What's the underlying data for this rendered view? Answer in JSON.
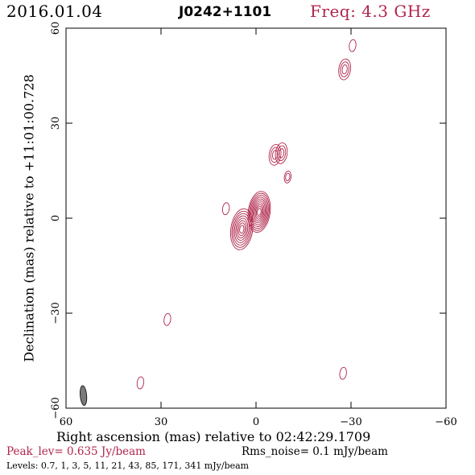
{
  "header": {
    "date": "2016.01.04",
    "source": "J0242+1101",
    "freq": "Freq: 4.3 GHz"
  },
  "footer": {
    "xlabel": "Right ascension (mas) relative to 02:42:29.1709",
    "peak": "Peak_lev=  0.635 Jy/beam",
    "rms": "Rms_noise=  0.1 mJy/beam",
    "levels": "Levels: 0.7,    1,    3,    5,   11,   21,   43,   85, 171, 341 mJy/beam"
  },
  "colors": {
    "contour": "#b0264b",
    "beam_fill": "#7a7a7a",
    "axis": "#000000"
  },
  "chart_data": {
    "type": "contour",
    "title": "",
    "xlabel": "Right ascension (mas) relative to 02:42:29.1709",
    "ylabel": "Declination (mas) relative to +11:01:00.728",
    "xlim": [
      60,
      -60
    ],
    "ylim": [
      -60,
      60
    ],
    "xticks": [
      60,
      30,
      0,
      -30,
      -60
    ],
    "yticks": [
      -60,
      -30,
      0,
      30,
      60
    ],
    "xtick_labels": [
      "60",
      "30",
      "0",
      "−30",
      "−60"
    ],
    "ytick_labels": [
      "−60",
      "−30",
      "0",
      "30",
      "60"
    ],
    "levels_mJy": [
      0.7,
      1,
      3,
      5,
      11,
      21,
      43,
      85,
      171,
      341
    ],
    "peak_Jy_per_beam": 0.635,
    "rms_mJy_per_beam": 0.1,
    "components": [
      {
        "x": -1.0,
        "y": 2.0,
        "n_contours": 10
      },
      {
        "x": 4.5,
        "y": -3.5,
        "n_contours": 8
      },
      {
        "x": -6.0,
        "y": 20.0,
        "n_contours": 3
      },
      {
        "x": -8.0,
        "y": 20.5,
        "n_contours": 3
      },
      {
        "x": -10.0,
        "y": 13.0,
        "n_contours": 2
      },
      {
        "x": -28.0,
        "y": 47.0,
        "n_contours": 3
      },
      {
        "x": -30.5,
        "y": 54.5,
        "n_contours": 1
      },
      {
        "x": 9.5,
        "y": 3.0,
        "n_contours": 1
      },
      {
        "x": 28.0,
        "y": -32.0,
        "n_contours": 1
      },
      {
        "x": 36.5,
        "y": -52.0,
        "n_contours": 1
      },
      {
        "x": -27.5,
        "y": -49.0,
        "n_contours": 1
      }
    ],
    "beam": {
      "x": 54.5,
      "y": -56.0,
      "major_mas": 4.8,
      "minor_mas": 1.7,
      "pa_deg": -5
    }
  }
}
